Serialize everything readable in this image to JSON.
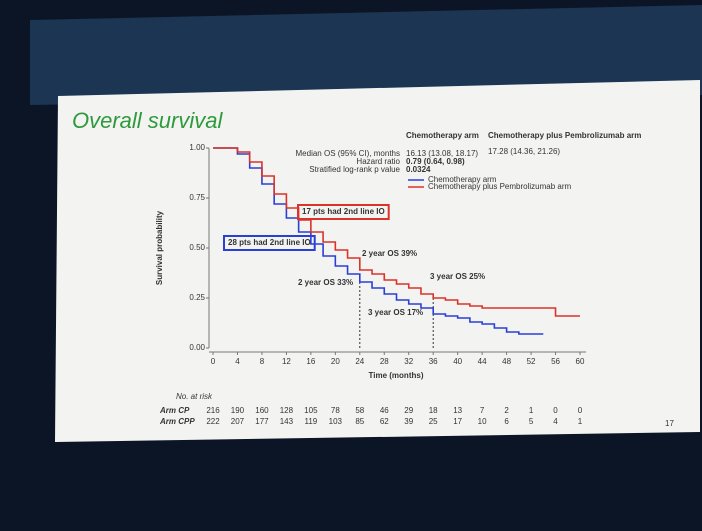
{
  "chart_data": {
    "type": "line",
    "step": true,
    "title": "Overall survival",
    "y_label": "Survival probability",
    "x_label": "Time (months)",
    "xlim": [
      0,
      60
    ],
    "xticks": [
      0,
      4,
      8,
      12,
      16,
      20,
      24,
      28,
      32,
      36,
      40,
      44,
      48,
      52,
      56,
      60
    ],
    "ylim": [
      0,
      1
    ],
    "yticks": [
      {
        "value": 0,
        "label": "0.00"
      },
      {
        "value": 0.25,
        "label": "0.25"
      },
      {
        "value": 0.5,
        "label": "0.50"
      },
      {
        "value": 0.75,
        "label": "0.75"
      },
      {
        "value": 1,
        "label": "1.00"
      }
    ],
    "series": [
      {
        "name": "Chemotherapy arm",
        "color": "#2a3fd6",
        "x": [
          0,
          4,
          6,
          8,
          10,
          12,
          14,
          16,
          18,
          20,
          22,
          24,
          26,
          28,
          30,
          32,
          34,
          36,
          38,
          40,
          42,
          44,
          46,
          48,
          50,
          52,
          54
        ],
        "values": [
          1.0,
          0.97,
          0.9,
          0.82,
          0.72,
          0.65,
          0.58,
          0.52,
          0.46,
          0.41,
          0.37,
          0.33,
          0.3,
          0.27,
          0.24,
          0.22,
          0.2,
          0.17,
          0.16,
          0.15,
          0.13,
          0.12,
          0.1,
          0.08,
          0.07,
          0.07,
          0.07
        ]
      },
      {
        "name": "Chemotherapy plus Pembrolizumab arm",
        "color": "#d9332a",
        "x": [
          0,
          4,
          6,
          8,
          10,
          12,
          14,
          16,
          18,
          20,
          22,
          24,
          26,
          28,
          30,
          32,
          34,
          36,
          38,
          40,
          42,
          44,
          46,
          48,
          50,
          52,
          54,
          56,
          58,
          60
        ],
        "values": [
          1.0,
          0.98,
          0.93,
          0.86,
          0.77,
          0.7,
          0.64,
          0.58,
          0.53,
          0.49,
          0.45,
          0.39,
          0.37,
          0.34,
          0.32,
          0.3,
          0.27,
          0.25,
          0.24,
          0.22,
          0.21,
          0.2,
          0.2,
          0.2,
          0.2,
          0.2,
          0.2,
          0.16,
          0.16,
          0.16
        ]
      }
    ],
    "stats": {
      "headers": [
        "Chemotherapy arm",
        "Chemotherapy plus Pembrolizumab arm"
      ],
      "rows": [
        [
          "Median OS (95% CI), months",
          "16.13 (13.08, 18.17)",
          "17.28 (14.36, 21.26)"
        ],
        [
          "Hazard ratio",
          "0.79 (0.64, 0.98)"
        ],
        [
          "Stratified log-rank p value",
          "0.0324"
        ]
      ]
    },
    "annotations": [
      "17 pts had 2nd line IO",
      "28 pts had 2nd line IO",
      "2 year OS 39%",
      "2 year OS 33%",
      "3 year OS 25%",
      "3 year OS 17%"
    ],
    "risk_table": {
      "title": "No. at risk",
      "rows": [
        {
          "label": "Arm CP",
          "values": [
            216,
            190,
            160,
            128,
            105,
            78,
            58,
            46,
            29,
            18,
            13,
            7,
            2,
            1,
            0,
            0
          ]
        },
        {
          "label": "Arm CPP",
          "values": [
            222,
            207,
            177,
            143,
            119,
            103,
            85,
            62,
            39,
            25,
            17,
            10,
            6,
            5,
            4,
            1
          ]
        }
      ]
    },
    "page_number": "17"
  }
}
